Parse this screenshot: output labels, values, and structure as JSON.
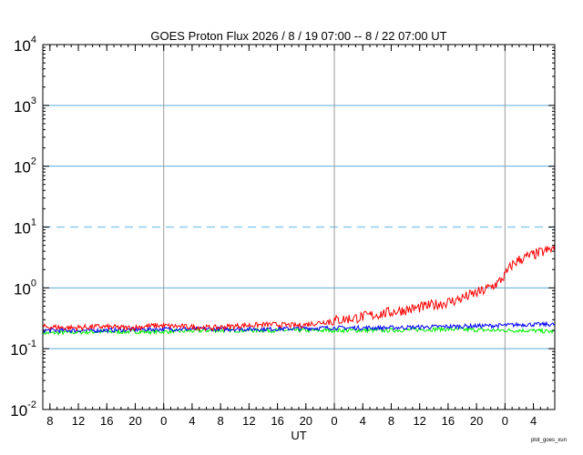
{
  "chart_data": {
    "type": "line",
    "title": "GOES Proton Flux   2026 /  8 / 19   07:00 --  8 / 22   07:00   UT",
    "xlabel": "UT",
    "ylabel": "",
    "y_scale": "log",
    "ylim": [
      0.01,
      10000
    ],
    "y_ticks": [
      {
        "base": "10",
        "exp": "-2"
      },
      {
        "base": "10",
        "exp": "-1"
      },
      {
        "base": "10",
        "exp": "0"
      },
      {
        "base": "10",
        "exp": "1"
      },
      {
        "base": "10",
        "exp": "2"
      },
      {
        "base": "10",
        "exp": "3"
      },
      {
        "base": "10",
        "exp": "4"
      }
    ],
    "x_range_hours": [
      0,
      72
    ],
    "x_tick_labels": [
      "8",
      "12",
      "16",
      "20",
      "0",
      "4",
      "8",
      "12",
      "16",
      "20",
      "0",
      "4",
      "8",
      "12",
      "16",
      "20",
      "0",
      "4"
    ],
    "x_tick_hours": [
      1,
      5,
      9,
      13,
      17,
      21,
      25,
      29,
      33,
      37,
      41,
      45,
      49,
      53,
      57,
      61,
      65,
      69
    ],
    "day_boundary_hours": [
      17,
      41,
      65
    ],
    "grid_lines_y": [
      0.1,
      1,
      100,
      1000
    ],
    "threshold_line_y": 10,
    "series": [
      {
        "color": "#ff0000",
        "x": [
          0,
          4,
          8,
          12,
          16,
          20,
          24,
          28,
          32,
          36,
          40,
          42,
          44,
          46,
          48,
          50,
          52,
          54,
          56,
          58,
          60,
          62,
          64,
          65,
          66,
          67,
          68,
          69,
          70,
          71,
          72
        ],
        "values": [
          0.23,
          0.22,
          0.23,
          0.22,
          0.24,
          0.23,
          0.22,
          0.24,
          0.25,
          0.24,
          0.28,
          0.3,
          0.32,
          0.35,
          0.38,
          0.42,
          0.45,
          0.5,
          0.55,
          0.62,
          0.75,
          0.9,
          1.2,
          1.6,
          2.4,
          2.9,
          3.2,
          3.5,
          3.8,
          4.1,
          4.5
        ]
      },
      {
        "color": "#0000ff",
        "x": [
          0,
          8,
          16,
          24,
          32,
          40,
          48,
          56,
          64,
          68,
          72
        ],
        "values": [
          0.2,
          0.2,
          0.21,
          0.21,
          0.21,
          0.22,
          0.22,
          0.23,
          0.24,
          0.25,
          0.25
        ]
      },
      {
        "color": "#00ee00",
        "x": [
          0,
          8,
          16,
          24,
          32,
          40,
          48,
          56,
          64,
          68,
          72
        ],
        "values": [
          0.18,
          0.19,
          0.19,
          0.2,
          0.2,
          0.2,
          0.2,
          0.21,
          0.2,
          0.2,
          0.19
        ]
      }
    ]
  },
  "credit": "plot_goes_xun"
}
